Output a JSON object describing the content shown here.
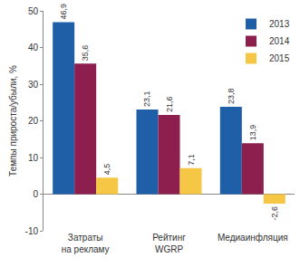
{
  "chart_data": {
    "type": "bar",
    "y_label": "Темпы прироста/убыли, %",
    "categories": [
      "Затраты\nна рекламу",
      "Рейтинг\nWGRP",
      "Медиаинфляция"
    ],
    "series": [
      {
        "name": "2013",
        "color": "#1f5fa8",
        "values": [
          46.9,
          23.1,
          23.8
        ],
        "value_labels": [
          "46,9",
          "23,1",
          "23,8"
        ]
      },
      {
        "name": "2014",
        "color": "#8c1f4e",
        "values": [
          35.6,
          21.6,
          13.9
        ],
        "value_labels": [
          "35,6",
          "21,6",
          "13,9"
        ]
      },
      {
        "name": "2015",
        "color": "#f6c744",
        "values": [
          4.5,
          7.1,
          -2.6
        ],
        "value_labels": [
          "4,5",
          "7,1",
          "-2,6"
        ]
      }
    ],
    "ylim": [
      -10,
      50
    ],
    "yticks": [
      -10,
      0,
      10,
      20,
      30,
      40,
      50
    ],
    "grid": false,
    "legend": "upper right",
    "data_labels": true
  }
}
